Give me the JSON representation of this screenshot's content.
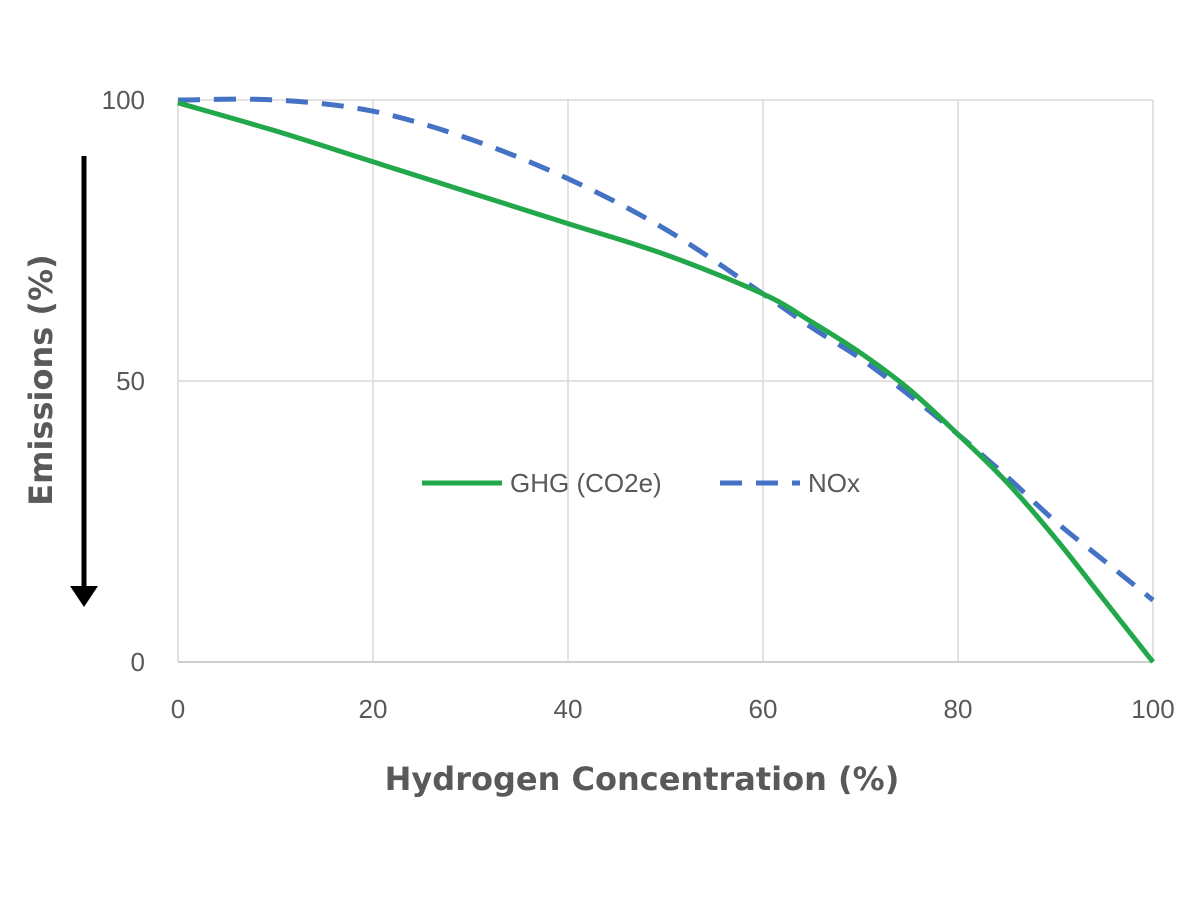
{
  "chart_data": {
    "type": "line",
    "xlabel": "Hydrogen Concentration (%)",
    "ylabel": "Emissions (%)",
    "xlim": [
      0,
      100
    ],
    "ylim": [
      0,
      100
    ],
    "x_ticks": [
      0,
      20,
      40,
      60,
      80,
      100
    ],
    "y_ticks": [
      0,
      50,
      100
    ],
    "grid": true,
    "legend": "center",
    "series": [
      {
        "name": "GHG (CO2e)",
        "style": "solid",
        "color": "#22a84a",
        "x": [
          0,
          10,
          20,
          30,
          40,
          50,
          60,
          65,
          70,
          75,
          80,
          85,
          90,
          95,
          100
        ],
        "y": [
          99.5,
          94.5,
          89,
          83.5,
          78,
          72.5,
          65.5,
          60.5,
          55,
          48.5,
          40.5,
          32,
          22,
          11,
          0
        ]
      },
      {
        "name": "NOx",
        "style": "dashed",
        "color": "#4472c4",
        "x": [
          0,
          10,
          20,
          30,
          40,
          50,
          60,
          65,
          70,
          75,
          80,
          85,
          90,
          95,
          100
        ],
        "y": [
          100,
          100,
          98,
          93,
          86,
          77,
          65.5,
          59.5,
          54,
          47.5,
          40.5,
          33,
          25,
          18,
          11
        ]
      }
    ]
  }
}
